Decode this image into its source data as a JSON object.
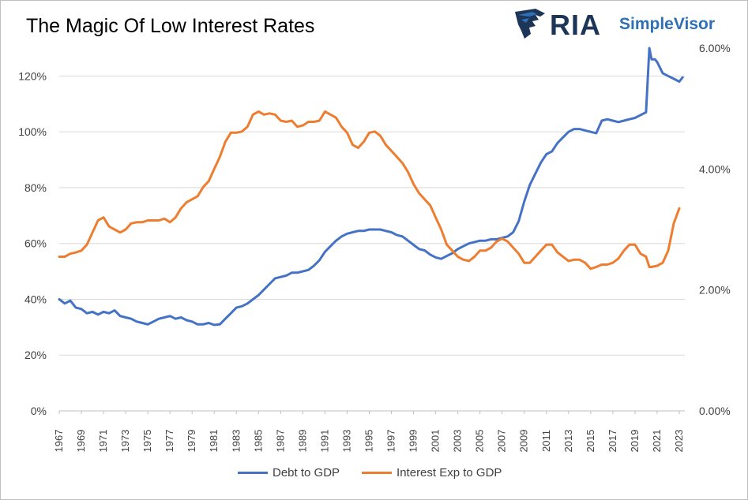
{
  "chart_data": {
    "type": "line",
    "title": "The Magic Of Low Interest Rates",
    "xlabel": "",
    "ylabel": "",
    "y_left_ticks": [
      "0%",
      "20%",
      "40%",
      "60%",
      "80%",
      "100%",
      "120%"
    ],
    "y_left_lim": [
      0,
      130
    ],
    "y_right_ticks": [
      "0.00%",
      "2.00%",
      "4.00%",
      "6.00%"
    ],
    "y_right_lim": [
      0,
      6.0
    ],
    "x_ticks": [
      "1967",
      "1969",
      "1971",
      "1973",
      "1975",
      "1977",
      "1979",
      "1981",
      "1983",
      "1985",
      "1987",
      "1989",
      "1991",
      "1993",
      "1995",
      "1997",
      "1999",
      "2001",
      "2003",
      "2005",
      "2007",
      "2009",
      "2011",
      "2013",
      "2015",
      "2017",
      "2019",
      "2021",
      "2023"
    ],
    "x_lim": [
      1967,
      2023.5
    ],
    "grid": true,
    "legend_position": "bottom",
    "series": [
      {
        "name": "Debt to GDP",
        "axis": "left",
        "color": "#4472C4",
        "points": [
          [
            1967,
            40
          ],
          [
            1967.5,
            38.5
          ],
          [
            1968,
            39.5
          ],
          [
            1968.5,
            37
          ],
          [
            1969,
            36.5
          ],
          [
            1969.5,
            35
          ],
          [
            1970,
            35.5
          ],
          [
            1970.5,
            34.5
          ],
          [
            1971,
            35.5
          ],
          [
            1971.5,
            35
          ],
          [
            1972,
            36
          ],
          [
            1972.5,
            34
          ],
          [
            1973,
            33.5
          ],
          [
            1973.5,
            33
          ],
          [
            1974,
            32
          ],
          [
            1974.5,
            31.5
          ],
          [
            1975,
            31
          ],
          [
            1975.5,
            32
          ],
          [
            1976,
            33
          ],
          [
            1976.5,
            33.5
          ],
          [
            1977,
            34
          ],
          [
            1977.5,
            33
          ],
          [
            1978,
            33.5
          ],
          [
            1978.5,
            32.5
          ],
          [
            1979,
            32
          ],
          [
            1979.5,
            31
          ],
          [
            1980,
            31
          ],
          [
            1980.5,
            31.5
          ],
          [
            1981,
            30.8
          ],
          [
            1981.5,
            31
          ],
          [
            1982,
            33
          ],
          [
            1982.5,
            35
          ],
          [
            1983,
            37
          ],
          [
            1983.5,
            37.5
          ],
          [
            1984,
            38.5
          ],
          [
            1984.5,
            40
          ],
          [
            1985,
            41.5
          ],
          [
            1985.5,
            43.5
          ],
          [
            1986,
            45.5
          ],
          [
            1986.5,
            47.5
          ],
          [
            1987,
            48
          ],
          [
            1987.5,
            48.5
          ],
          [
            1988,
            49.5
          ],
          [
            1988.5,
            49.5
          ],
          [
            1989,
            50
          ],
          [
            1989.5,
            50.5
          ],
          [
            1990,
            52
          ],
          [
            1990.5,
            54
          ],
          [
            1991,
            57
          ],
          [
            1991.5,
            59
          ],
          [
            1992,
            61
          ],
          [
            1992.5,
            62.5
          ],
          [
            1993,
            63.5
          ],
          [
            1993.5,
            64
          ],
          [
            1994,
            64.5
          ],
          [
            1994.5,
            64.5
          ],
          [
            1995,
            65
          ],
          [
            1995.5,
            65
          ],
          [
            1996,
            65
          ],
          [
            1996.5,
            64.5
          ],
          [
            1997,
            64
          ],
          [
            1997.5,
            63
          ],
          [
            1998,
            62.5
          ],
          [
            1998.5,
            61
          ],
          [
            1999,
            59.5
          ],
          [
            1999.5,
            58
          ],
          [
            2000,
            57.5
          ],
          [
            2000.5,
            56
          ],
          [
            2001,
            55
          ],
          [
            2001.5,
            54.5
          ],
          [
            2002,
            55.5
          ],
          [
            2002.5,
            56.5
          ],
          [
            2003,
            58
          ],
          [
            2003.5,
            59
          ],
          [
            2004,
            60
          ],
          [
            2004.5,
            60.5
          ],
          [
            2005,
            61
          ],
          [
            2005.5,
            61
          ],
          [
            2006,
            61.5
          ],
          [
            2006.5,
            61.5
          ],
          [
            2007,
            62
          ],
          [
            2007.5,
            62.5
          ],
          [
            2008,
            64
          ],
          [
            2008.5,
            68
          ],
          [
            2009,
            75
          ],
          [
            2009.5,
            81
          ],
          [
            2010,
            85
          ],
          [
            2010.5,
            89
          ],
          [
            2011,
            92
          ],
          [
            2011.5,
            93
          ],
          [
            2012,
            96
          ],
          [
            2012.5,
            98
          ],
          [
            2013,
            100
          ],
          [
            2013.5,
            101
          ],
          [
            2014,
            101
          ],
          [
            2014.5,
            100.5
          ],
          [
            2015,
            100
          ],
          [
            2015.5,
            99.5
          ],
          [
            2016,
            104
          ],
          [
            2016.5,
            104.5
          ],
          [
            2017,
            104
          ],
          [
            2017.5,
            103.5
          ],
          [
            2018,
            104
          ],
          [
            2018.5,
            104.5
          ],
          [
            2019,
            105
          ],
          [
            2019.5,
            106
          ],
          [
            2020,
            107
          ],
          [
            2020.3,
            130
          ],
          [
            2020.5,
            126
          ],
          [
            2020.8,
            126
          ],
          [
            2021,
            125
          ],
          [
            2021.5,
            121
          ],
          [
            2022,
            120
          ],
          [
            2022.5,
            119
          ],
          [
            2023,
            118
          ],
          [
            2023.3,
            119.5
          ]
        ]
      },
      {
        "name": "Interest Exp to GDP",
        "axis": "right",
        "color": "#ED7D31",
        "points": [
          [
            1967,
            2.55
          ],
          [
            1967.5,
            2.55
          ],
          [
            1968,
            2.6
          ],
          [
            1968.5,
            2.62
          ],
          [
            1969,
            2.65
          ],
          [
            1969.5,
            2.75
          ],
          [
            1970,
            2.95
          ],
          [
            1970.5,
            3.15
          ],
          [
            1971,
            3.2
          ],
          [
            1971.5,
            3.05
          ],
          [
            1972,
            3.0
          ],
          [
            1972.5,
            2.95
          ],
          [
            1973,
            3.0
          ],
          [
            1973.5,
            3.1
          ],
          [
            1974,
            3.12
          ],
          [
            1974.5,
            3.12
          ],
          [
            1975,
            3.15
          ],
          [
            1975.5,
            3.15
          ],
          [
            1976,
            3.15
          ],
          [
            1976.5,
            3.18
          ],
          [
            1977,
            3.12
          ],
          [
            1977.5,
            3.2
          ],
          [
            1978,
            3.35
          ],
          [
            1978.5,
            3.45
          ],
          [
            1979,
            3.5
          ],
          [
            1979.5,
            3.55
          ],
          [
            1980,
            3.7
          ],
          [
            1980.5,
            3.8
          ],
          [
            1981,
            4.0
          ],
          [
            1981.5,
            4.2
          ],
          [
            1982,
            4.45
          ],
          [
            1982.5,
            4.6
          ],
          [
            1983,
            4.6
          ],
          [
            1983.5,
            4.62
          ],
          [
            1984,
            4.7
          ],
          [
            1984.5,
            4.9
          ],
          [
            1985,
            4.95
          ],
          [
            1985.5,
            4.9
          ],
          [
            1986,
            4.92
          ],
          [
            1986.5,
            4.9
          ],
          [
            1987,
            4.8
          ],
          [
            1987.5,
            4.78
          ],
          [
            1988,
            4.8
          ],
          [
            1988.5,
            4.7
          ],
          [
            1989,
            4.72
          ],
          [
            1989.5,
            4.78
          ],
          [
            1990,
            4.78
          ],
          [
            1990.5,
            4.8
          ],
          [
            1991,
            4.95
          ],
          [
            1991.5,
            4.9
          ],
          [
            1992,
            4.85
          ],
          [
            1992.5,
            4.7
          ],
          [
            1993,
            4.6
          ],
          [
            1993.5,
            4.4
          ],
          [
            1994,
            4.35
          ],
          [
            1994.5,
            4.45
          ],
          [
            1995,
            4.6
          ],
          [
            1995.5,
            4.62
          ],
          [
            1996,
            4.55
          ],
          [
            1996.5,
            4.4
          ],
          [
            1997,
            4.3
          ],
          [
            1997.5,
            4.2
          ],
          [
            1998,
            4.1
          ],
          [
            1998.5,
            3.95
          ],
          [
            1999,
            3.75
          ],
          [
            1999.5,
            3.6
          ],
          [
            2000,
            3.5
          ],
          [
            2000.5,
            3.4
          ],
          [
            2001,
            3.2
          ],
          [
            2001.5,
            3.0
          ],
          [
            2002,
            2.75
          ],
          [
            2002.5,
            2.65
          ],
          [
            2003,
            2.55
          ],
          [
            2003.5,
            2.5
          ],
          [
            2004,
            2.48
          ],
          [
            2004.5,
            2.55
          ],
          [
            2005,
            2.65
          ],
          [
            2005.5,
            2.65
          ],
          [
            2006,
            2.7
          ],
          [
            2006.5,
            2.8
          ],
          [
            2007,
            2.85
          ],
          [
            2007.5,
            2.8
          ],
          [
            2008,
            2.7
          ],
          [
            2008.5,
            2.6
          ],
          [
            2009,
            2.45
          ],
          [
            2009.5,
            2.45
          ],
          [
            2010,
            2.55
          ],
          [
            2010.5,
            2.65
          ],
          [
            2011,
            2.75
          ],
          [
            2011.5,
            2.75
          ],
          [
            2012,
            2.62
          ],
          [
            2012.5,
            2.55
          ],
          [
            2013,
            2.48
          ],
          [
            2013.5,
            2.5
          ],
          [
            2014,
            2.5
          ],
          [
            2014.5,
            2.45
          ],
          [
            2015,
            2.35
          ],
          [
            2015.5,
            2.38
          ],
          [
            2016,
            2.42
          ],
          [
            2016.5,
            2.42
          ],
          [
            2017,
            2.45
          ],
          [
            2017.5,
            2.52
          ],
          [
            2018,
            2.65
          ],
          [
            2018.5,
            2.75
          ],
          [
            2019,
            2.75
          ],
          [
            2019.5,
            2.6
          ],
          [
            2020,
            2.55
          ],
          [
            2020.3,
            2.38
          ],
          [
            2020.5,
            2.38
          ],
          [
            2021,
            2.4
          ],
          [
            2021.5,
            2.45
          ],
          [
            2022,
            2.65
          ],
          [
            2022.5,
            3.1
          ],
          [
            2023,
            3.35
          ]
        ]
      }
    ]
  },
  "logo": {
    "brand": "RIA",
    "product": "SimpleVisor"
  },
  "colors": {
    "debt": "#4472C4",
    "interest": "#ED7D31",
    "grid": "#d9d9d9",
    "logo_dark": "#1d3557",
    "logo_blue": "#2e6fb6"
  }
}
